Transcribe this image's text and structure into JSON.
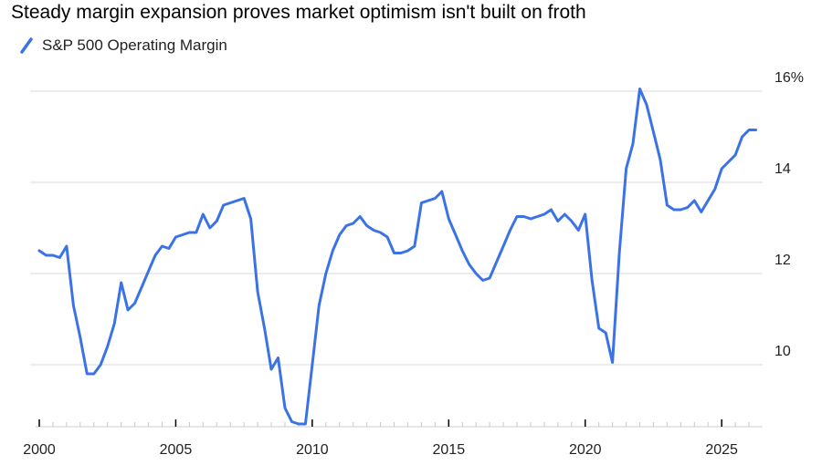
{
  "chart_data": {
    "type": "line",
    "title": "Steady margin expansion proves market optimism isn't built on froth",
    "xlabel": "",
    "ylabel": "",
    "xlim": [
      2000,
      2026.5
    ],
    "ylim": [
      8.7,
      16.3
    ],
    "x_ticks": [
      2000,
      2005,
      2010,
      2015,
      2020,
      2025
    ],
    "x_tick_labels": [
      "2000",
      "2005",
      "2010",
      "2015",
      "2020",
      "2025"
    ],
    "y_ticks": [
      10,
      12,
      14,
      16
    ],
    "y_tick_labels": [
      "10",
      "12",
      "14",
      "16%"
    ],
    "grid": "horizontal",
    "legend": "top-left",
    "colors": {
      "line": "#3b73e6",
      "grid": "#d9d9d9",
      "axis": "#000000"
    },
    "series": [
      {
        "name": "S&P 500 Operating Margin",
        "x": [
          2000.0,
          2000.25,
          2000.5,
          2000.75,
          2001.0,
          2001.25,
          2001.5,
          2001.75,
          2002.0,
          2002.25,
          2002.5,
          2002.75,
          2003.0,
          2003.25,
          2003.5,
          2003.75,
          2004.0,
          2004.25,
          2004.5,
          2004.75,
          2005.0,
          2005.25,
          2005.5,
          2005.75,
          2006.0,
          2006.25,
          2006.5,
          2006.75,
          2007.0,
          2007.25,
          2007.5,
          2007.75,
          2008.0,
          2008.25,
          2008.5,
          2008.75,
          2009.0,
          2009.25,
          2009.5,
          2009.75,
          2010.0,
          2010.25,
          2010.5,
          2010.75,
          2011.0,
          2011.25,
          2011.5,
          2011.75,
          2012.0,
          2012.25,
          2012.5,
          2012.75,
          2013.0,
          2013.25,
          2013.5,
          2013.75,
          2014.0,
          2014.25,
          2014.5,
          2014.75,
          2015.0,
          2015.25,
          2015.5,
          2015.75,
          2016.0,
          2016.25,
          2016.5,
          2016.75,
          2017.0,
          2017.25,
          2017.5,
          2017.75,
          2018.0,
          2018.25,
          2018.5,
          2018.75,
          2019.0,
          2019.25,
          2019.5,
          2019.75,
          2020.0,
          2020.25,
          2020.5,
          2020.75,
          2021.0,
          2021.25,
          2021.5,
          2021.75,
          2022.0,
          2022.25,
          2022.5,
          2022.75,
          2023.0,
          2023.25,
          2023.5,
          2023.75,
          2024.0,
          2024.25,
          2024.5,
          2024.75,
          2025.0,
          2025.25,
          2025.5,
          2025.75,
          2026.0,
          2026.25
        ],
        "values": [
          12.5,
          12.4,
          12.4,
          12.35,
          12.6,
          11.3,
          10.6,
          9.8,
          9.8,
          10.0,
          10.4,
          10.9,
          11.8,
          11.2,
          11.35,
          11.7,
          12.05,
          12.4,
          12.6,
          12.55,
          12.8,
          12.85,
          12.9,
          12.9,
          13.3,
          13.0,
          13.15,
          13.5,
          13.55,
          13.6,
          13.65,
          13.2,
          11.6,
          10.8,
          9.9,
          10.15,
          9.05,
          8.75,
          8.7,
          8.7,
          10.0,
          11.3,
          12.0,
          12.5,
          12.85,
          13.05,
          13.1,
          13.25,
          13.05,
          12.95,
          12.9,
          12.8,
          12.45,
          12.45,
          12.5,
          12.6,
          13.55,
          13.6,
          13.65,
          13.8,
          13.2,
          12.85,
          12.5,
          12.2,
          12.0,
          11.85,
          11.9,
          12.25,
          12.6,
          12.95,
          13.25,
          13.25,
          13.2,
          13.25,
          13.3,
          13.4,
          13.15,
          13.3,
          13.15,
          12.95,
          13.3,
          11.85,
          10.8,
          10.7,
          10.05,
          12.45,
          14.3,
          14.85,
          16.05,
          15.7,
          15.1,
          14.5,
          13.5,
          13.4,
          13.4,
          13.45,
          13.6,
          13.35,
          13.6,
          13.85,
          14.3,
          14.45,
          14.6,
          15.0,
          15.15,
          15.15
        ]
      }
    ]
  }
}
